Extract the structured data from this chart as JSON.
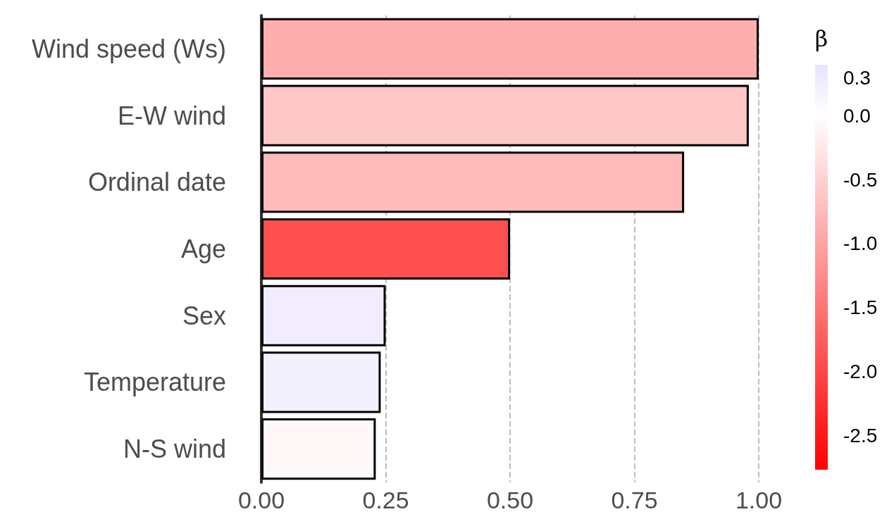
{
  "chart_data": {
    "type": "bar",
    "orientation": "horizontal",
    "categories": [
      "Wind speed (Ws)",
      "E-W wind",
      "Ordinal date",
      "Age",
      "Sex",
      "Temperature",
      "N-S wind"
    ],
    "values": [
      1.0,
      0.98,
      0.85,
      0.5,
      0.25,
      0.24,
      0.23
    ],
    "cvalues": [
      -0.88,
      -0.6,
      -0.75,
      -1.9,
      0.25,
      0.2,
      -0.08
    ],
    "clabel": "β",
    "clim": [
      -2.77,
      0.4
    ],
    "cticks": [
      {
        "value": 0.3,
        "label": "0.3"
      },
      {
        "value": 0,
        "label": "0.0"
      },
      {
        "value": -0.5,
        "label": "-0.5"
      },
      {
        "value": -1,
        "label": "-1.0"
      },
      {
        "value": -1.5,
        "label": "-1.5"
      },
      {
        "value": -2,
        "label": "-2.0"
      },
      {
        "value": -2.5,
        "label": "-2.5"
      }
    ],
    "xlim": [
      0,
      1
    ],
    "xticks": [
      {
        "value": 0,
        "label": "0.00"
      },
      {
        "value": 0.25,
        "label": "0.25"
      },
      {
        "value": 0.5,
        "label": "0.50"
      },
      {
        "value": 0.75,
        "label": "0.75"
      },
      {
        "value": 1,
        "label": "1.00"
      }
    ],
    "grid": "x"
  }
}
